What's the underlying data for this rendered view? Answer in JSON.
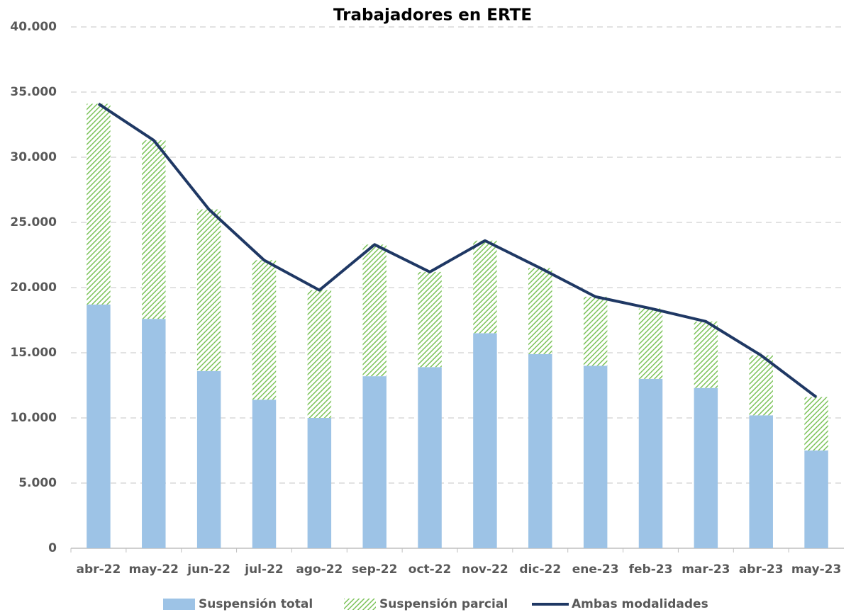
{
  "chart_data": {
    "type": "bar-line",
    "title": "Trabajadores en ERTE",
    "categories": [
      "abr-22",
      "may-22",
      "jun-22",
      "jul-22",
      "ago-22",
      "sep-22",
      "oct-22",
      "nov-22",
      "dic-22",
      "ene-23",
      "feb-23",
      "mar-23",
      "abr-23",
      "may-23"
    ],
    "series": [
      {
        "name": "Suspensión total",
        "color": "#9dc3e6",
        "type": "bar",
        "values": [
          18700,
          17600,
          13600,
          11400,
          10000,
          13200,
          13900,
          16500,
          14900,
          14000,
          13000,
          12300,
          10200,
          7500
        ]
      },
      {
        "name": "Suspensión parcial",
        "color": "#7cc35a",
        "type": "bar",
        "hatch": true,
        "values": [
          15400,
          13700,
          12400,
          10700,
          9800,
          10100,
          7300,
          7100,
          6600,
          5300,
          5400,
          5100,
          4600,
          4100
        ]
      },
      {
        "name": "Ambas modalidades",
        "color": "#1f3864",
        "type": "line",
        "values": [
          34100,
          31300,
          26000,
          22100,
          19800,
          23300,
          21200,
          23600,
          21500,
          19300,
          18400,
          17400,
          14800,
          11600
        ]
      }
    ],
    "stacked": true,
    "ylim": [
      0,
      40000
    ],
    "yticks": [
      0,
      {
        "value": 5000,
        "label": "5.000"
      },
      {
        "value": 10000,
        "label": "10.000"
      },
      {
        "value": 15000,
        "label": "15.000"
      },
      {
        "value": 20000,
        "label": "20.000"
      },
      {
        "value": 25000,
        "label": "25.000"
      },
      {
        "value": 30000,
        "label": "30.000"
      },
      {
        "value": 35000,
        "label": "35.000"
      },
      {
        "value": 40000,
        "label": "40.000"
      }
    ],
    "grid": true,
    "legend": "bottom"
  }
}
